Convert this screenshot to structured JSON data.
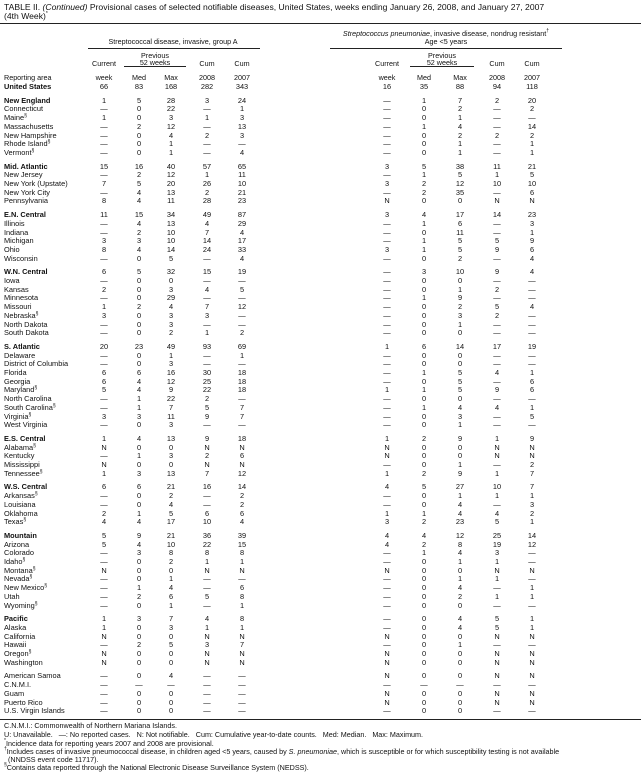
{
  "title": {
    "label": "TABLE II.",
    "continued": "(Continued)",
    "text": "Provisional cases of selected notifiable diseases, United States, weeks ending January 26, 2008, and January 27, 2007",
    "line2": "(4th Week)",
    "mark": "*"
  },
  "header": {
    "group1": "Streptococcal disease, invasive, group A",
    "group2_italic": "Streptococcus pneumoniae",
    "group2_rest": ", invasive disease, nondrug resistant",
    "group2_mark": "†",
    "group2_line2": "Age <5 years",
    "reporting_area": "Reporting area",
    "current": "Current",
    "week": "week",
    "previous": "Previous",
    "weeks52": "52 weeks",
    "med": "Med",
    "max": "Max",
    "cum": "Cum",
    "y2008": "2008",
    "y2007": "2007"
  },
  "rows": [
    {
      "area": "United States",
      "bold": true,
      "values": [
        "66",
        "83",
        "168",
        "282",
        "343",
        "16",
        "35",
        "88",
        "94",
        "118"
      ]
    },
    {
      "area": "New England",
      "bold": true,
      "gap": true,
      "values": [
        "1",
        "5",
        "28",
        "3",
        "24",
        "—",
        "1",
        "7",
        "2",
        "20"
      ]
    },
    {
      "area": "Connecticut",
      "values": [
        "—",
        "0",
        "22",
        "—",
        "1",
        "—",
        "0",
        "2",
        "—",
        "2"
      ]
    },
    {
      "area": "Maine",
      "mark": "§",
      "values": [
        "1",
        "0",
        "3",
        "1",
        "3",
        "—",
        "0",
        "1",
        "—",
        "—"
      ]
    },
    {
      "area": "Massachusetts",
      "values": [
        "—",
        "2",
        "12",
        "—",
        "13",
        "—",
        "1",
        "4",
        "—",
        "14"
      ]
    },
    {
      "area": "New Hampshire",
      "values": [
        "—",
        "0",
        "4",
        "2",
        "3",
        "—",
        "0",
        "2",
        "2",
        "2"
      ]
    },
    {
      "area": "Rhode Island",
      "mark": "§",
      "values": [
        "—",
        "0",
        "1",
        "—",
        "—",
        "—",
        "0",
        "1",
        "—",
        "1"
      ]
    },
    {
      "area": "Vermont",
      "mark": "§",
      "values": [
        "—",
        "0",
        "1",
        "—",
        "4",
        "—",
        "0",
        "1",
        "—",
        "1"
      ]
    },
    {
      "area": "Mid. Atlantic",
      "bold": true,
      "gap": true,
      "values": [
        "15",
        "16",
        "40",
        "57",
        "65",
        "3",
        "5",
        "38",
        "11",
        "21"
      ]
    },
    {
      "area": "New Jersey",
      "values": [
        "—",
        "2",
        "12",
        "1",
        "11",
        "—",
        "1",
        "5",
        "1",
        "5"
      ]
    },
    {
      "area": "New York (Upstate)",
      "values": [
        "7",
        "5",
        "20",
        "26",
        "10",
        "3",
        "2",
        "12",
        "10",
        "10"
      ]
    },
    {
      "area": "New York City",
      "values": [
        "—",
        "4",
        "13",
        "2",
        "21",
        "—",
        "2",
        "35",
        "—",
        "6"
      ]
    },
    {
      "area": "Pennsylvania",
      "values": [
        "8",
        "4",
        "11",
        "28",
        "23",
        "N",
        "0",
        "0",
        "N",
        "N"
      ]
    },
    {
      "area": "E.N. Central",
      "bold": true,
      "gap": true,
      "values": [
        "11",
        "15",
        "34",
        "49",
        "87",
        "3",
        "4",
        "17",
        "14",
        "23"
      ]
    },
    {
      "area": "Illinois",
      "values": [
        "—",
        "4",
        "13",
        "4",
        "29",
        "—",
        "1",
        "6",
        "—",
        "3"
      ]
    },
    {
      "area": "Indiana",
      "values": [
        "—",
        "2",
        "10",
        "7",
        "4",
        "—",
        "0",
        "11",
        "—",
        "1"
      ]
    },
    {
      "area": "Michigan",
      "values": [
        "3",
        "3",
        "10",
        "14",
        "17",
        "—",
        "1",
        "5",
        "5",
        "9"
      ]
    },
    {
      "area": "Ohio",
      "values": [
        "8",
        "4",
        "14",
        "24",
        "33",
        "3",
        "1",
        "5",
        "9",
        "6"
      ]
    },
    {
      "area": "Wisconsin",
      "values": [
        "—",
        "0",
        "5",
        "—",
        "4",
        "—",
        "0",
        "2",
        "—",
        "4"
      ]
    },
    {
      "area": "W.N. Central",
      "bold": true,
      "gap": true,
      "values": [
        "6",
        "5",
        "32",
        "15",
        "19",
        "—",
        "3",
        "10",
        "9",
        "4"
      ]
    },
    {
      "area": "Iowa",
      "values": [
        "—",
        "0",
        "0",
        "—",
        "—",
        "—",
        "0",
        "0",
        "—",
        "—"
      ]
    },
    {
      "area": "Kansas",
      "values": [
        "2",
        "0",
        "3",
        "4",
        "5",
        "—",
        "0",
        "1",
        "2",
        "—"
      ]
    },
    {
      "area": "Minnesota",
      "values": [
        "—",
        "0",
        "29",
        "—",
        "—",
        "—",
        "1",
        "9",
        "—",
        "—"
      ]
    },
    {
      "area": "Missouri",
      "values": [
        "1",
        "2",
        "4",
        "7",
        "12",
        "—",
        "0",
        "2",
        "5",
        "4"
      ]
    },
    {
      "area": "Nebraska",
      "mark": "§",
      "values": [
        "3",
        "0",
        "3",
        "3",
        "—",
        "—",
        "0",
        "3",
        "2",
        "—"
      ]
    },
    {
      "area": "North Dakota",
      "values": [
        "—",
        "0",
        "3",
        "—",
        "—",
        "—",
        "0",
        "1",
        "—",
        "—"
      ]
    },
    {
      "area": "South Dakota",
      "values": [
        "—",
        "0",
        "2",
        "1",
        "2",
        "—",
        "0",
        "0",
        "—",
        "—"
      ]
    },
    {
      "area": "S. Atlantic",
      "bold": true,
      "gap": true,
      "values": [
        "20",
        "23",
        "49",
        "93",
        "69",
        "1",
        "6",
        "14",
        "17",
        "19"
      ]
    },
    {
      "area": "Delaware",
      "values": [
        "—",
        "0",
        "1",
        "—",
        "1",
        "—",
        "0",
        "0",
        "—",
        "—"
      ]
    },
    {
      "area": "District of Columbia",
      "values": [
        "—",
        "0",
        "3",
        "—",
        "—",
        "—",
        "0",
        "0",
        "—",
        "—"
      ]
    },
    {
      "area": "Florida",
      "values": [
        "6",
        "6",
        "16",
        "30",
        "18",
        "—",
        "1",
        "5",
        "4",
        "1"
      ]
    },
    {
      "area": "Georgia",
      "values": [
        "6",
        "4",
        "12",
        "25",
        "18",
        "—",
        "0",
        "5",
        "—",
        "6"
      ]
    },
    {
      "area": "Maryland",
      "mark": "§",
      "values": [
        "5",
        "4",
        "9",
        "22",
        "18",
        "1",
        "1",
        "5",
        "9",
        "6"
      ]
    },
    {
      "area": "North Carolina",
      "values": [
        "—",
        "1",
        "22",
        "2",
        "—",
        "—",
        "0",
        "0",
        "—",
        "—"
      ]
    },
    {
      "area": "South Carolina",
      "mark": "§",
      "values": [
        "—",
        "1",
        "7",
        "5",
        "7",
        "—",
        "1",
        "4",
        "4",
        "1"
      ]
    },
    {
      "area": "Virginia",
      "mark": "§",
      "values": [
        "3",
        "3",
        "11",
        "9",
        "7",
        "—",
        "0",
        "3",
        "—",
        "5"
      ]
    },
    {
      "area": "West Virginia",
      "values": [
        "—",
        "0",
        "3",
        "—",
        "—",
        "—",
        "0",
        "1",
        "—",
        "—"
      ]
    },
    {
      "area": "E.S. Central",
      "bold": true,
      "gap": true,
      "values": [
        "1",
        "4",
        "13",
        "9",
        "18",
        "1",
        "2",
        "9",
        "1",
        "9"
      ]
    },
    {
      "area": "Alabama",
      "mark": "§",
      "values": [
        "N",
        "0",
        "0",
        "N",
        "N",
        "N",
        "0",
        "0",
        "N",
        "N"
      ]
    },
    {
      "area": "Kentucky",
      "values": [
        "—",
        "1",
        "3",
        "2",
        "6",
        "N",
        "0",
        "0",
        "N",
        "N"
      ]
    },
    {
      "area": "Mississippi",
      "values": [
        "N",
        "0",
        "0",
        "N",
        "N",
        "—",
        "0",
        "1",
        "—",
        "2"
      ]
    },
    {
      "area": "Tennessee",
      "mark": "§",
      "values": [
        "1",
        "3",
        "13",
        "7",
        "12",
        "1",
        "2",
        "9",
        "1",
        "7"
      ]
    },
    {
      "area": "W.S. Central",
      "bold": true,
      "gap": true,
      "values": [
        "6",
        "6",
        "21",
        "16",
        "14",
        "4",
        "5",
        "27",
        "10",
        "7"
      ]
    },
    {
      "area": "Arkansas",
      "mark": "§",
      "values": [
        "—",
        "0",
        "2",
        "—",
        "2",
        "—",
        "0",
        "1",
        "1",
        "1"
      ]
    },
    {
      "area": "Louisiana",
      "values": [
        "—",
        "0",
        "4",
        "—",
        "2",
        "—",
        "0",
        "4",
        "—",
        "3"
      ]
    },
    {
      "area": "Oklahoma",
      "values": [
        "2",
        "1",
        "5",
        "6",
        "6",
        "1",
        "1",
        "4",
        "4",
        "2"
      ]
    },
    {
      "area": "Texas",
      "mark": "§",
      "values": [
        "4",
        "4",
        "17",
        "10",
        "4",
        "3",
        "2",
        "23",
        "5",
        "1"
      ]
    },
    {
      "area": "Mountain",
      "bold": true,
      "gap": true,
      "values": [
        "5",
        "9",
        "21",
        "36",
        "39",
        "4",
        "4",
        "12",
        "25",
        "14"
      ]
    },
    {
      "area": "Arizona",
      "values": [
        "5",
        "4",
        "10",
        "22",
        "15",
        "4",
        "2",
        "8",
        "19",
        "12"
      ]
    },
    {
      "area": "Colorado",
      "values": [
        "—",
        "3",
        "8",
        "8",
        "8",
        "—",
        "1",
        "4",
        "3",
        "—"
      ]
    },
    {
      "area": "Idaho",
      "mark": "§",
      "values": [
        "—",
        "0",
        "2",
        "1",
        "1",
        "—",
        "0",
        "1",
        "1",
        "—"
      ]
    },
    {
      "area": "Montana",
      "mark": "§",
      "values": [
        "N",
        "0",
        "0",
        "N",
        "N",
        "N",
        "0",
        "0",
        "N",
        "N"
      ]
    },
    {
      "area": "Nevada",
      "mark": "§",
      "values": [
        "—",
        "0",
        "1",
        "—",
        "—",
        "—",
        "0",
        "1",
        "1",
        "—"
      ]
    },
    {
      "area": "New Mexico",
      "mark": "§",
      "values": [
        "—",
        "1",
        "4",
        "—",
        "6",
        "—",
        "0",
        "4",
        "—",
        "1"
      ]
    },
    {
      "area": "Utah",
      "values": [
        "—",
        "2",
        "6",
        "5",
        "8",
        "—",
        "0",
        "2",
        "1",
        "1"
      ]
    },
    {
      "area": "Wyoming",
      "mark": "§",
      "values": [
        "—",
        "0",
        "1",
        "—",
        "1",
        "—",
        "0",
        "0",
        "—",
        "—"
      ]
    },
    {
      "area": "Pacific",
      "bold": true,
      "gap": true,
      "values": [
        "1",
        "3",
        "7",
        "4",
        "8",
        "—",
        "0",
        "4",
        "5",
        "1"
      ]
    },
    {
      "area": "Alaska",
      "values": [
        "1",
        "0",
        "3",
        "1",
        "1",
        "—",
        "0",
        "4",
        "5",
        "1"
      ]
    },
    {
      "area": "California",
      "values": [
        "N",
        "0",
        "0",
        "N",
        "N",
        "N",
        "0",
        "0",
        "N",
        "N"
      ]
    },
    {
      "area": "Hawaii",
      "values": [
        "—",
        "2",
        "5",
        "3",
        "7",
        "—",
        "0",
        "1",
        "—",
        "—"
      ]
    },
    {
      "area": "Oregon",
      "mark": "§",
      "values": [
        "N",
        "0",
        "0",
        "N",
        "N",
        "N",
        "0",
        "0",
        "N",
        "N"
      ]
    },
    {
      "area": "Washington",
      "values": [
        "N",
        "0",
        "0",
        "N",
        "N",
        "N",
        "0",
        "0",
        "N",
        "N"
      ]
    },
    {
      "area": "American Samoa",
      "gap": true,
      "values": [
        "—",
        "0",
        "4",
        "—",
        "—",
        "N",
        "0",
        "0",
        "N",
        "N"
      ]
    },
    {
      "area": "C.N.M.I.",
      "values": [
        "—",
        "—",
        "—",
        "—",
        "—",
        "—",
        "—",
        "—",
        "—",
        "—"
      ]
    },
    {
      "area": "Guam",
      "values": [
        "—",
        "0",
        "0",
        "—",
        "—",
        "N",
        "0",
        "0",
        "N",
        "N"
      ]
    },
    {
      "area": "Puerto Rico",
      "values": [
        "—",
        "0",
        "0",
        "—",
        "—",
        "N",
        "0",
        "0",
        "N",
        "N"
      ]
    },
    {
      "area": "U.S. Virgin Islands",
      "values": [
        "—",
        "0",
        "0",
        "—",
        "—",
        "—",
        "0",
        "0",
        "—",
        "—"
      ]
    }
  ],
  "footnotes": {
    "cnmi": "C.N.M.I.: Commonwealth of Northern Mariana Islands.",
    "legend": "U: Unavailable.   —: No reported cases.   N: Not notifiable.   Cum: Cumulative year-to-date counts.   Med: Median.   Max: Maximum.",
    "star_mark": "*",
    "star": "Incidence data for reporting years 2007 and 2008 are provisional.",
    "dagger_mark": "†",
    "dagger_a": "Includes cases of invasive pneumococcal disease, in children aged <5 years, caused by ",
    "dagger_italic": "S. pneumoniae",
    "dagger_b": ", which is susceptible or for which susceptibility testing is not available",
    "dagger_line2": "(NNDSS event code 11717).",
    "section_mark": "§",
    "section": "Contains data reported through the National Electronic Disease Surveillance System (NEDSS)."
  }
}
